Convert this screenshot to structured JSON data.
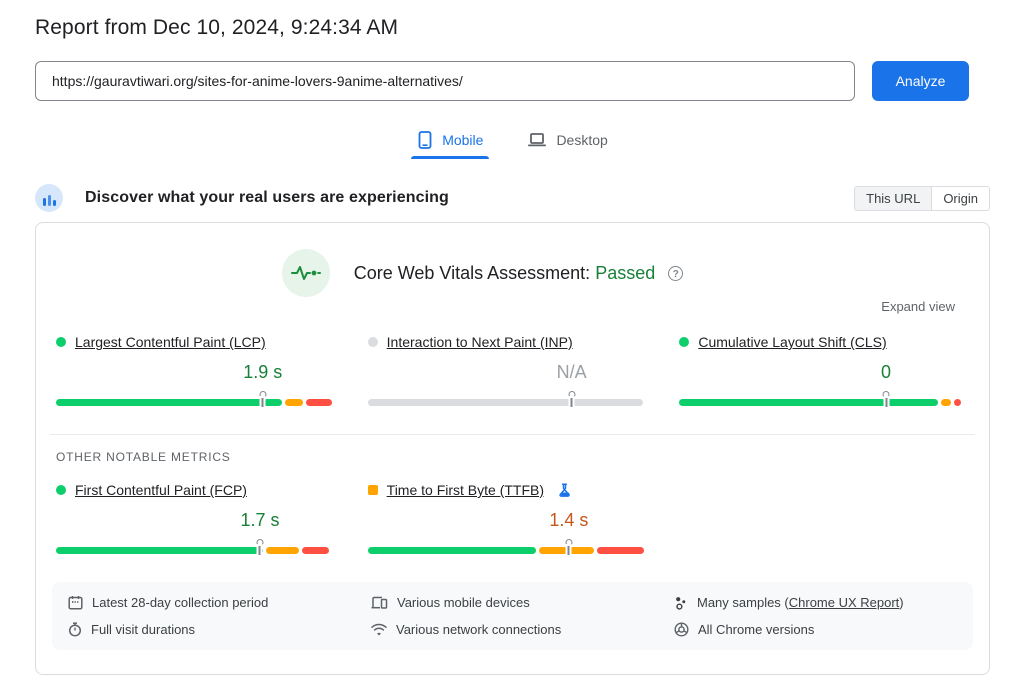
{
  "page": {
    "title": "Report from Dec 10, 2024, 9:24:34 AM"
  },
  "url_bar": {
    "value": "https://gauravtiwari.org/sites-for-anime-lovers-9anime-alternatives/",
    "analyze_label": "Analyze"
  },
  "tabs": [
    {
      "label": "Mobile",
      "active": true
    },
    {
      "label": "Desktop",
      "active": false
    }
  ],
  "field_section": {
    "heading": "Discover what your real users are experiencing",
    "scope_toggle": [
      {
        "label": "This URL",
        "selected": true
      },
      {
        "label": "Origin",
        "selected": false
      }
    ],
    "assessment_title": "Core Web Vitals Assessment:",
    "assessment_result": "Passed",
    "expand_label": "Expand view",
    "other_metrics_label": "OTHER NOTABLE METRICS"
  },
  "colors": {
    "accent_blue": "#1a73e8",
    "bar_good": "#0cce6b",
    "bar_average": "#ffa400",
    "bar_poor": "#ff4e42",
    "bar_na": "#dadce0",
    "text_good": "#188038",
    "text_average": "#c5571c",
    "text_na": "#9aa0a6"
  },
  "metrics": {
    "core": [
      {
        "id": "lcp",
        "name": "Largest Contentful Paint (LCP)",
        "value": "1.9 s",
        "value_color": "#188038",
        "indicator": {
          "shape": "circle",
          "color": "#0cce6b"
        },
        "marker_pct": 75,
        "segments": [
          {
            "color": "#0cce6b",
            "pct": 82
          },
          {
            "color": "#ffa400",
            "pct": 6.5
          },
          {
            "color": "#ff4e42",
            "pct": 9.5
          }
        ]
      },
      {
        "id": "inp",
        "name": "Interaction to Next Paint (INP)",
        "value": "N/A",
        "value_color": "#9aa0a6",
        "indicator": {
          "shape": "circle",
          "color": "#dadce0"
        },
        "marker_pct": 74,
        "segments": [
          {
            "color": "#dadce0",
            "pct": 100
          }
        ]
      },
      {
        "id": "cls",
        "name": "Cumulative Layout Shift (CLS)",
        "value": "0",
        "value_color": "#188038",
        "indicator": {
          "shape": "circle",
          "color": "#0cce6b"
        },
        "marker_pct": 75,
        "segments": [
          {
            "color": "#0cce6b",
            "pct": 94
          },
          {
            "color": "#ffa400",
            "pct": 3.5
          },
          {
            "color": "#ff4e42",
            "pct": 2.5
          }
        ]
      }
    ],
    "other": [
      {
        "id": "fcp",
        "name": "First Contentful Paint (FCP)",
        "value": "1.7 s",
        "value_color": "#188038",
        "indicator": {
          "shape": "circle",
          "color": "#0cce6b"
        },
        "marker_pct": 74,
        "segments": [
          {
            "color": "#0cce6b",
            "pct": 75
          },
          {
            "color": "#ffa400",
            "pct": 12
          },
          {
            "color": "#ff4e42",
            "pct": 10
          }
        ]
      },
      {
        "id": "ttfb",
        "name": "Time to First Byte (TTFB)",
        "value": "1.4 s",
        "value_color": "#c5571c",
        "experimental": true,
        "indicator": {
          "shape": "square",
          "color": "#ffa400"
        },
        "marker_pct": 73,
        "segments": [
          {
            "color": "#0cce6b",
            "pct": 61
          },
          {
            "color": "#ffa400",
            "pct": 20
          },
          {
            "color": "#ff4e42",
            "pct": 17
          }
        ]
      }
    ]
  },
  "footer": {
    "items": [
      {
        "icon": "calendar-icon",
        "text": "Latest 28-day collection period"
      },
      {
        "icon": "mobile-devices-icon",
        "text": "Various mobile devices"
      },
      {
        "icon": "samples-icon",
        "prefix": "Many samples (",
        "link": "Chrome UX Report",
        "suffix": ")"
      },
      {
        "icon": "stopwatch-icon",
        "text": "Full visit durations"
      },
      {
        "icon": "network-icon",
        "text": "Various network connections"
      },
      {
        "icon": "chrome-icon",
        "text": "All Chrome versions"
      }
    ]
  }
}
